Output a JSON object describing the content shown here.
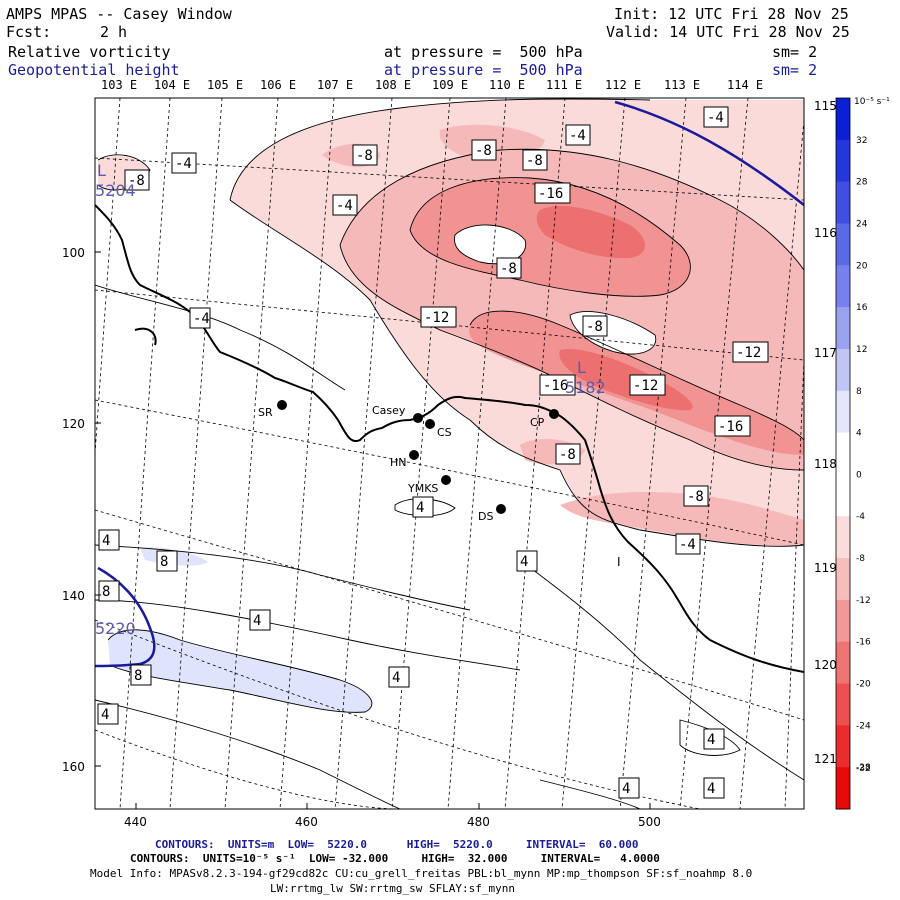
{
  "header": {
    "title": "AMPS MPAS -- Casey Window",
    "init": "Init: 12 UTC Fri 28 Nov 25",
    "fcst_label": "Fcst:",
    "fcst_value": "2 h",
    "valid": "Valid: 14 UTC Fri 28 Nov 25",
    "field1_name": "Relative vorticity",
    "field1_level": "at pressure =  500 hPa",
    "field1_sm": "sm= 2",
    "field2_name": "Geopotential height",
    "field2_level": "at pressure =  500 hPa",
    "field2_sm": "sm= 2"
  },
  "lon_labels_top": [
    "103 E",
    "104 E",
    "105 E",
    "106 E",
    "107 E",
    "108 E",
    "109 E",
    "110 E",
    "111 E",
    "112 E",
    "113 E",
    "114 E"
  ],
  "lon_labels_right": [
    "115 E",
    "116 E",
    "117 E",
    "118 E",
    "119 E",
    "120 E",
    "121 E"
  ],
  "axis_y_labels": [
    "100",
    "120",
    "140",
    "160"
  ],
  "axis_x_labels": [
    "440",
    "460",
    "480",
    "500"
  ],
  "colorbar": {
    "unit_label": "10⁻⁵ s⁻¹",
    "ticks": [
      "32",
      "28",
      "24",
      "20",
      "16",
      "12",
      "8",
      "4",
      "0",
      "-4",
      "-8",
      "-12",
      "-16",
      "-20",
      "-24",
      "-28",
      "-32"
    ],
    "colors": [
      "#0a1fd6",
      "#2437dc",
      "#3f50e0",
      "#5a69e6",
      "#7781ec",
      "#9aa2f0",
      "#c0c5f6",
      "#e3e5fb",
      "#ffffff",
      "#ffffff",
      "#fbdcdc",
      "#f7bcbc",
      "#f29898",
      "#ef7474",
      "#ec5050",
      "#ea2c2c",
      "#e80a0a"
    ]
  },
  "stations": [
    {
      "label": "SR"
    },
    {
      "label": "Casey"
    },
    {
      "label": "CS"
    },
    {
      "label": "CP"
    },
    {
      "label": "HN"
    },
    {
      "label": "YMKS"
    },
    {
      "label": "DS"
    }
  ],
  "contour_labels": [
    "-4",
    "-8",
    "-4",
    "-8",
    "-8",
    "-8",
    "-4",
    "-16",
    "-4",
    "-8",
    "-4",
    "-12",
    "-8",
    "-12",
    "-16",
    "-12",
    "-16",
    "-8",
    "-8",
    "-4",
    "4",
    "4",
    "4",
    "8",
    "4",
    "8",
    "4",
    "8",
    "4",
    "4",
    "4",
    "4",
    "4"
  ],
  "pressure_labels": [
    "L",
    "5204",
    "L",
    "5182",
    "5220",
    "I"
  ],
  "footer": {
    "line1_label": "CONTOURS:",
    "line1_units": "UNITS=m",
    "line1_low": "LOW=  5220.0",
    "line1_high": "HIGH=  5220.0",
    "line1_interval": "INTERVAL=  60.000",
    "line2_label": "CONTOURS:",
    "line2_units": "UNITS=10⁻⁵ s⁻¹",
    "line2_low": "LOW= -32.000",
    "line2_high": "HIGH=  32.000",
    "line2_interval": "INTERVAL=   4.0000",
    "model_info": "Model Info: MPASv8.2.3-194-gf29cd82c CU:cu_grell_freitas PBL:bl_mynn MP:mp_thompson SF:sf_noahmp 8.0",
    "model_info2": "LW:rrtmg_lw SW:rrtmg_sw SFLAY:sf_mynn"
  },
  "colors": {
    "neg_light": "#fbdada",
    "neg_mid": "#f6b9b9",
    "neg_strong": "#f19393",
    "neg_deep": "#ec7070",
    "pos_light": "#dfe3fb",
    "geopotential": "#1b1b9a"
  }
}
